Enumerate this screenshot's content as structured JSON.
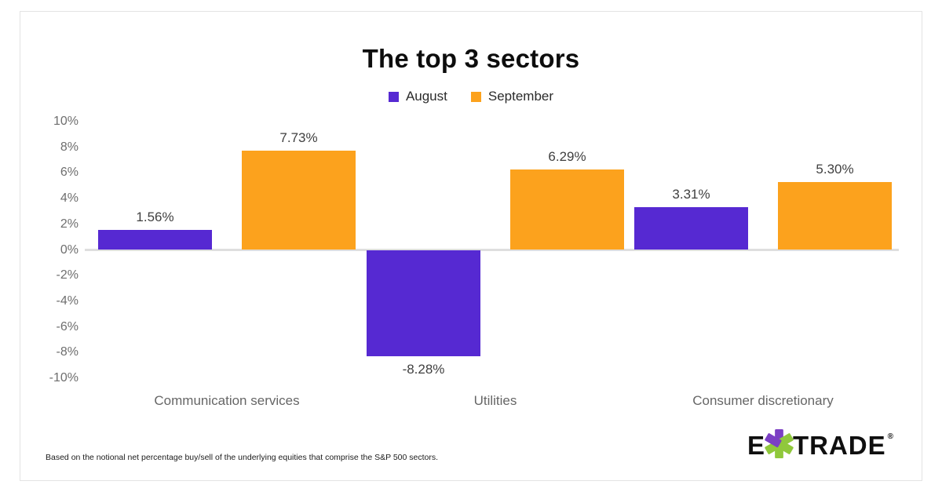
{
  "title": "The top 3 sectors",
  "chart_data": {
    "type": "bar",
    "title": "The top 3 sectors",
    "categories": [
      "Communication services",
      "Utilities",
      "Consumer discretionary"
    ],
    "series": [
      {
        "name": "August",
        "color": "#5629d2",
        "values": [
          1.56,
          -8.28,
          3.31
        ]
      },
      {
        "name": "September",
        "color": "#fca21d",
        "values": [
          7.73,
          6.29,
          5.3
        ]
      }
    ],
    "xlabel": "",
    "ylabel": "",
    "ylim": [
      -10,
      10
    ],
    "y_tick_step": 2,
    "y_tick_labels": [
      "10%",
      "8%",
      "6%",
      "4%",
      "2%",
      "0%",
      "-2%",
      "-4%",
      "-6%",
      "-8%",
      "-10%"
    ],
    "value_label_format": "0.00%",
    "legend_position": "top",
    "gridlines": "zero-baseline-only"
  },
  "footnote": "Based on the notional net percentage buy/sell of the underlying equities that comprise the S&P 500 sectors.",
  "logo": {
    "prefix": "E",
    "suffix": "TRADE",
    "registered": "®",
    "asterisk_purple": "#7b3fc4",
    "asterisk_green": "#90c83c",
    "wordmark_color": "#0f0f0f"
  }
}
